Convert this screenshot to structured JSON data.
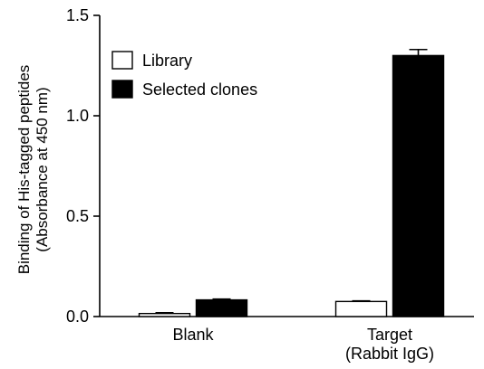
{
  "chart_data": {
    "type": "bar",
    "title": "",
    "xlabel": "",
    "ylabel_lines": [
      "Binding of His-tagged peptides",
      "(Absorbance at 450 nm)"
    ],
    "ylim": [
      0,
      1.5
    ],
    "yticks": [
      0.0,
      0.5,
      1.0,
      1.5
    ],
    "ytick_labels": [
      "0.0",
      "0.5",
      "1.0",
      "1.5"
    ],
    "categories": [
      {
        "lines": [
          "Blank"
        ]
      },
      {
        "lines": [
          "Target",
          "(Rabbit IgG)"
        ]
      }
    ],
    "series": [
      {
        "name": "Library",
        "color": "#ffffff",
        "values": [
          0.015,
          0.075
        ],
        "errors": [
          0.004,
          0.003
        ]
      },
      {
        "name": "Selected clones",
        "color": "#000000",
        "values": [
          0.083,
          1.3
        ],
        "errors": [
          0.004,
          0.03
        ]
      }
    ],
    "legend_position": "top-left",
    "grid": false
  }
}
